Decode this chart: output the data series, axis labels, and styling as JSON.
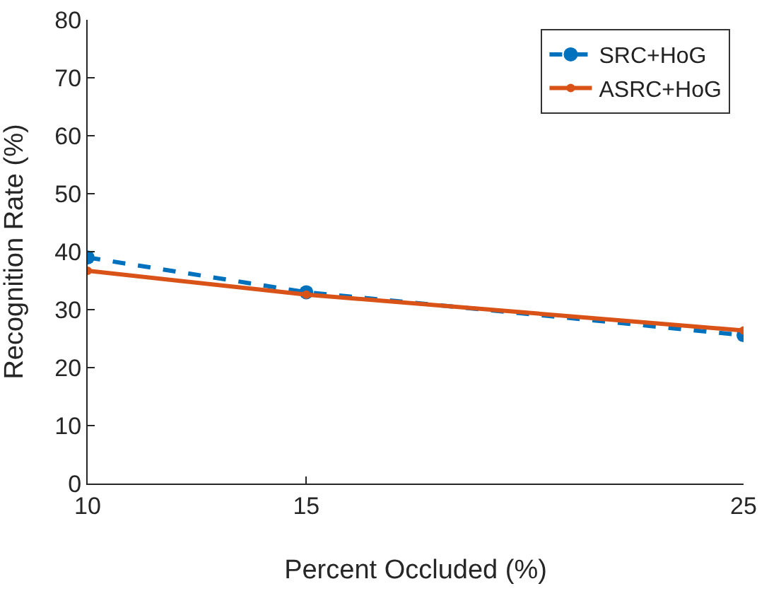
{
  "chart_data": {
    "type": "line",
    "xlabel": "Percent Occluded (%)",
    "ylabel": "Recognition Rate (%)",
    "x": [
      10,
      15,
      25
    ],
    "series": [
      {
        "name": "SRC+HoG",
        "color": "#0072bd",
        "values": [
          39,
          33,
          25.6
        ],
        "line_style": "dashed"
      },
      {
        "name": "ASRC+HoG",
        "color": "#d95319",
        "values": [
          36.7,
          32.6,
          26.4
        ],
        "line_style": "solid"
      }
    ],
    "xlim": [
      10,
      25
    ],
    "xticks": [
      10,
      15,
      25
    ],
    "ylim": [
      0,
      80
    ],
    "yticks": [
      0,
      10,
      20,
      30,
      40,
      50,
      60,
      70,
      80
    ],
    "grid": false,
    "legend": "top right",
    "marker": "circle"
  }
}
